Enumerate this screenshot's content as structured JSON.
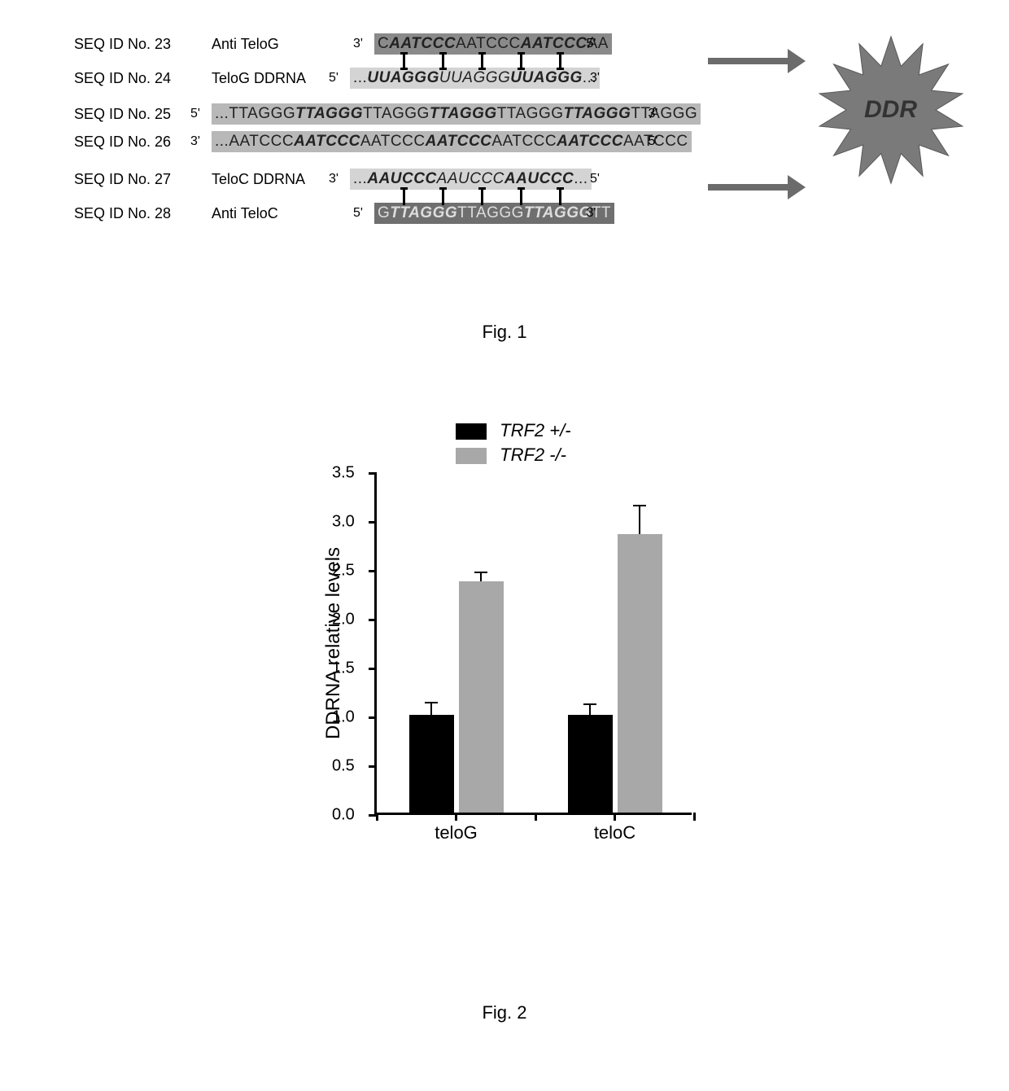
{
  "fig1": {
    "label": "Fig. 1",
    "ddr_text": "DDR",
    "sequences": [
      {
        "id": "SEQ ID No. 23",
        "name": "Anti TeloG",
        "left_prime": "3'",
        "right_prime": "5'",
        "segments": [
          {
            "t": "C",
            "b": false
          },
          {
            "t": "AATCCC",
            "b": true
          },
          {
            "t": "AATCCC",
            "b": false
          },
          {
            "t": "AATCCC",
            "b": true
          },
          {
            "t": "AA",
            "b": false
          }
        ],
        "bg": "#8a8a8a",
        "fg": "#222222"
      },
      {
        "id": "SEQ ID No. 24",
        "name": "TeloG DDRNA",
        "left_prime": "5'",
        "right_prime": "3'",
        "segments": [
          {
            "t": "...",
            "b": false
          },
          {
            "t": "UUAGGG",
            "b": true,
            "i": true
          },
          {
            "t": "UUAGGG",
            "b": false,
            "i": true
          },
          {
            "t": "UUAGGG",
            "b": true,
            "i": true
          },
          {
            "t": "...",
            "b": false
          }
        ],
        "bg": "#d4d4d4",
        "fg": "#222222"
      },
      {
        "id": "SEQ ID No. 25",
        "name": "",
        "left_prime": "5'",
        "right_prime": "3'",
        "segments": [
          {
            "t": "...",
            "b": false
          },
          {
            "t": "TTAGGG",
            "b": false
          },
          {
            "t": "TTAGGG",
            "b": true
          },
          {
            "t": "TTAGGG",
            "b": false
          },
          {
            "t": "TTAGGG",
            "b": true
          },
          {
            "t": "TTAGGG",
            "b": false
          },
          {
            "t": "TTAGGG",
            "b": true
          },
          {
            "t": "TTAGGG",
            "b": false
          }
        ],
        "bg": "#b8b8b8",
        "fg": "#222222"
      },
      {
        "id": "SEQ ID No. 26",
        "name": "",
        "left_prime": "3'",
        "right_prime": "5'",
        "segments": [
          {
            "t": "...",
            "b": false
          },
          {
            "t": "AATCCC",
            "b": false
          },
          {
            "t": "AATCCC",
            "b": true
          },
          {
            "t": "AATCCC",
            "b": false
          },
          {
            "t": "AATCCC",
            "b": true
          },
          {
            "t": "AATCCC",
            "b": false
          },
          {
            "t": "AATCCC",
            "b": true
          },
          {
            "t": "AATCCC",
            "b": false
          }
        ],
        "bg": "#b8b8b8",
        "fg": "#222222"
      },
      {
        "id": "SEQ ID No. 27",
        "name": "TeloC DDRNA",
        "left_prime": "3'",
        "right_prime": "5'",
        "segments": [
          {
            "t": "...",
            "b": false
          },
          {
            "t": "AAUCCC",
            "b": true,
            "i": true
          },
          {
            "t": "AAUCCC",
            "b": false,
            "i": true
          },
          {
            "t": "AAUCCC",
            "b": true,
            "i": true
          },
          {
            "t": "...",
            "b": false
          }
        ],
        "bg": "#d4d4d4",
        "fg": "#222222"
      },
      {
        "id": "SEQ ID No. 28",
        "name": "Anti TeloC",
        "left_prime": "5'",
        "right_prime": "3'",
        "segments": [
          {
            "t": "G",
            "b": false
          },
          {
            "t": "TTAGGG",
            "b": true
          },
          {
            "t": "TTAGGG",
            "b": false
          },
          {
            "t": "TTAGGG",
            "b": true
          },
          {
            "t": "TT",
            "b": false
          }
        ],
        "bg": "#6f6f6f",
        "fg": "#dddddd"
      }
    ],
    "starburst_color": "#7a7a7a",
    "arrow_color": "#6b6b6b"
  },
  "fig2": {
    "label": "Fig. 2",
    "chart": {
      "type": "bar",
      "ylabel": "DDRNA relative levels",
      "label_fontsize": 24,
      "ylim": [
        0,
        3.5
      ],
      "ytick_step": 0.5,
      "yticks": [
        "0.0",
        "0.5",
        "1.0",
        "1.5",
        "2.0",
        "2.5",
        "3.0",
        "3.5"
      ],
      "categories": [
        "teloG",
        "teloC"
      ],
      "series": [
        {
          "name": "TRF2 +/-",
          "color": "#000000",
          "values": [
            1.0,
            1.0
          ],
          "errors": [
            0.12,
            0.1
          ]
        },
        {
          "name": "TRF2 -/-",
          "color": "#a8a8a8",
          "values": [
            2.37,
            2.85
          ],
          "errors": [
            0.08,
            0.28
          ]
        }
      ],
      "background_color": "#ffffff",
      "axis_color": "#000000",
      "bar_width": 0.35,
      "tick_fontsize": 20,
      "category_fontsize": 22,
      "legend_fontsize": 22
    }
  }
}
